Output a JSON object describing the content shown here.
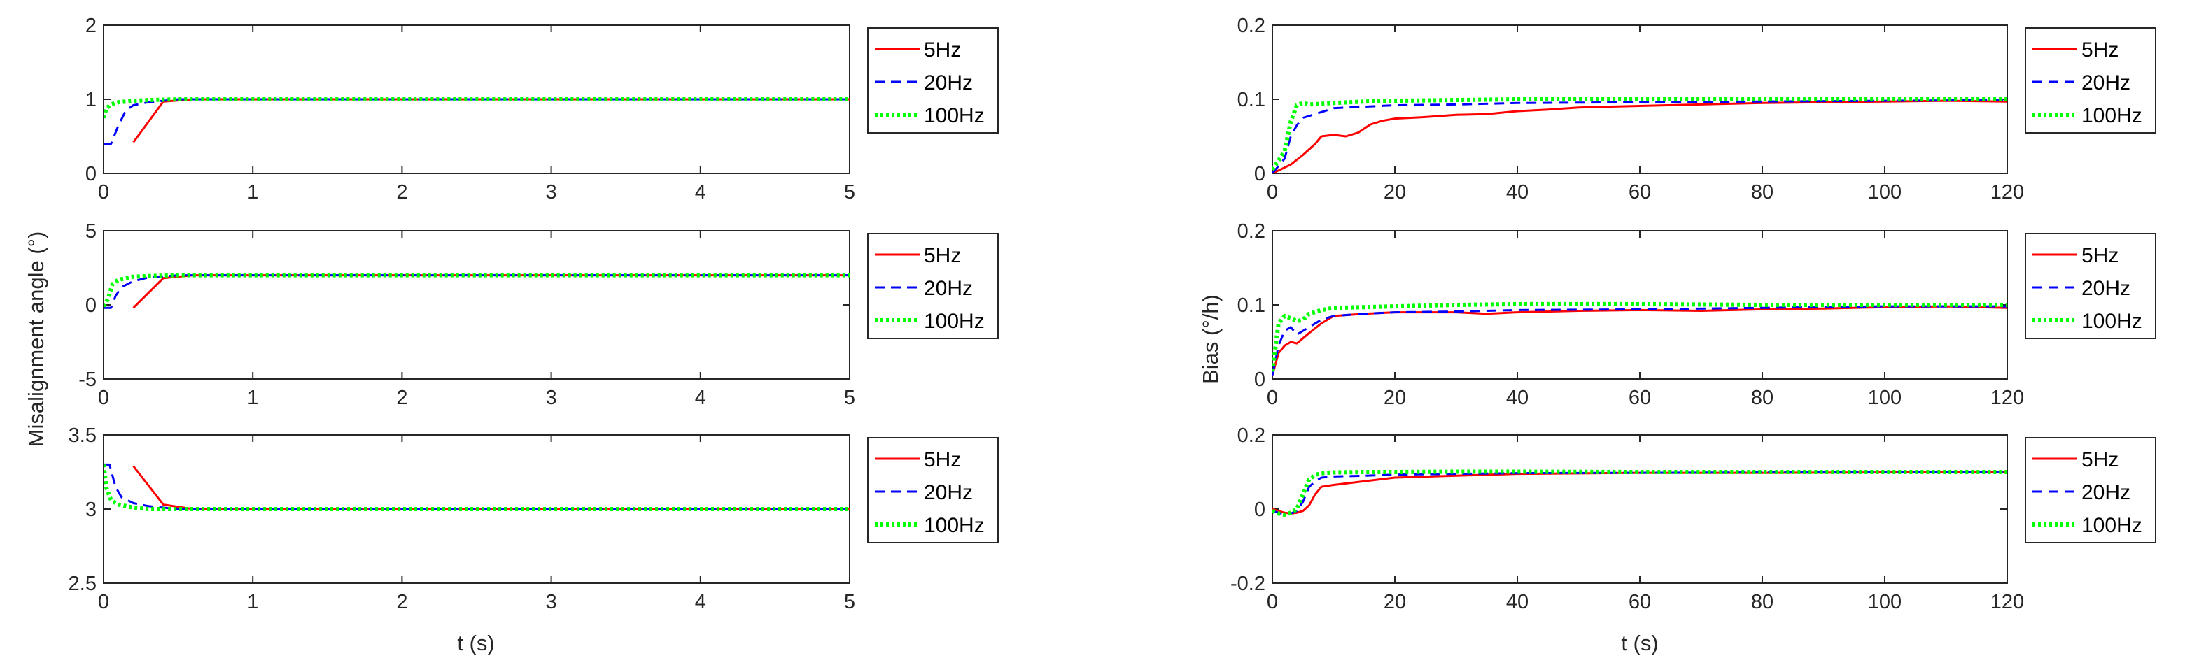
{
  "colors": {
    "5Hz": "#ff0000",
    "20Hz": "#0000ff",
    "100Hz": "#00ff00",
    "axis": "#262626"
  },
  "left_column": {
    "ylabel": "Misalignment angle (°)",
    "xlabel": "t (s)"
  },
  "right_column": {
    "ylabel": "Bias (°/h)",
    "xlabel": "t (s)"
  },
  "chart_data": [
    {
      "id": "L1",
      "type": "line",
      "xlim": [
        0,
        5
      ],
      "ylim": [
        0,
        2
      ],
      "xticks": [
        "0",
        "1",
        "2",
        "3",
        "4",
        "5"
      ],
      "yticks": [
        "0",
        "1",
        "2"
      ],
      "ytick_values": [
        0,
        1,
        2
      ],
      "xlabel": "",
      "ylabel": "",
      "legend": [
        "5Hz",
        "20Hz",
        "100Hz"
      ],
      "legend_position": "outside-right-top",
      "series": [
        {
          "name": "5Hz",
          "style": "solid",
          "x": [
            0.2,
            0.4,
            0.6,
            5
          ],
          "y": [
            0.42,
            0.97,
            1.0,
            1.0
          ]
        },
        {
          "name": "20Hz",
          "style": "dashed",
          "x": [
            0,
            0.05,
            0.1,
            0.15,
            0.2,
            0.3,
            0.4,
            0.5,
            5
          ],
          "y": [
            0.4,
            0.4,
            0.65,
            0.85,
            0.92,
            0.96,
            0.98,
            1.0,
            1.0
          ]
        },
        {
          "name": "100Hz",
          "style": "dotted",
          "x": [
            0,
            0.02,
            0.05,
            0.1,
            0.2,
            0.3,
            0.5,
            5
          ],
          "y": [
            0.75,
            0.88,
            0.93,
            0.96,
            0.98,
            0.99,
            1.0,
            1.0
          ]
        }
      ]
    },
    {
      "id": "L2",
      "type": "line",
      "xlim": [
        0,
        5
      ],
      "ylim": [
        -5,
        5
      ],
      "xticks": [
        "0",
        "1",
        "2",
        "3",
        "4",
        "5"
      ],
      "yticks": [
        "-5",
        "0",
        "5"
      ],
      "ytick_values": [
        -5,
        0,
        5
      ],
      "xlabel": "",
      "ylabel": "",
      "legend": [
        "5Hz",
        "20Hz",
        "100Hz"
      ],
      "legend_position": "outside-right-top",
      "series": [
        {
          "name": "5Hz",
          "style": "solid",
          "x": [
            0.2,
            0.4,
            0.6,
            5
          ],
          "y": [
            -0.2,
            1.8,
            2.0,
            2.0
          ]
        },
        {
          "name": "20Hz",
          "style": "dashed",
          "x": [
            0,
            0.05,
            0.08,
            0.12,
            0.2,
            0.3,
            0.5,
            5
          ],
          "y": [
            -0.2,
            -0.2,
            0.6,
            1.2,
            1.6,
            1.85,
            2.0,
            2.0
          ]
        },
        {
          "name": "100Hz",
          "style": "dotted",
          "x": [
            0,
            0.03,
            0.06,
            0.1,
            0.2,
            0.3,
            0.5,
            5
          ],
          "y": [
            -0.1,
            0.4,
            1.4,
            1.7,
            1.9,
            1.95,
            2.0,
            2.0
          ]
        }
      ]
    },
    {
      "id": "L3",
      "type": "line",
      "xlim": [
        0,
        5
      ],
      "ylim": [
        2.5,
        3.5
      ],
      "xticks": [
        "0",
        "1",
        "2",
        "3",
        "4",
        "5"
      ],
      "yticks": [
        "2.5",
        "3",
        "3.5"
      ],
      "ytick_values": [
        2.5,
        3,
        3.5
      ],
      "xlabel": "t (s)",
      "ylabel": "",
      "legend": [
        "5Hz",
        "20Hz",
        "100Hz"
      ],
      "legend_position": "outside-right-top",
      "series": [
        {
          "name": "5Hz",
          "style": "solid",
          "x": [
            0.2,
            0.4,
            0.6,
            5
          ],
          "y": [
            3.29,
            3.03,
            3.0,
            3.0
          ]
        },
        {
          "name": "20Hz",
          "style": "dashed",
          "x": [
            0,
            0.04,
            0.08,
            0.12,
            0.2,
            0.3,
            0.5,
            5
          ],
          "y": [
            3.3,
            3.3,
            3.15,
            3.08,
            3.04,
            3.02,
            3.0,
            3.0
          ]
        },
        {
          "name": "100Hz",
          "style": "dotted",
          "x": [
            0,
            0.02,
            0.05,
            0.1,
            0.2,
            0.3,
            0.5,
            5
          ],
          "y": [
            3.3,
            3.14,
            3.06,
            3.03,
            3.01,
            3.0,
            3.0,
            3.0
          ]
        }
      ]
    },
    {
      "id": "R1",
      "type": "line",
      "xlim": [
        0,
        120
      ],
      "ylim": [
        0,
        0.2
      ],
      "xticks": [
        "0",
        "20",
        "40",
        "60",
        "80",
        "100",
        "120"
      ],
      "yticks": [
        "0",
        "0.1",
        "0.2"
      ],
      "ytick_values": [
        0,
        0.1,
        0.2
      ],
      "xlabel": "",
      "ylabel": "",
      "legend": [
        "5Hz",
        "20Hz",
        "100Hz"
      ],
      "legend_position": "outside-right-top",
      "series": [
        {
          "name": "5Hz",
          "style": "solid",
          "x": [
            0,
            3,
            5,
            7,
            8,
            10,
            12,
            14,
            16,
            18,
            20,
            25,
            30,
            35,
            40,
            45,
            50,
            60,
            70,
            80,
            90,
            100,
            110,
            120
          ],
          "y": [
            0,
            0.012,
            0.025,
            0.04,
            0.05,
            0.052,
            0.05,
            0.055,
            0.066,
            0.071,
            0.074,
            0.076,
            0.079,
            0.08,
            0.084,
            0.086,
            0.089,
            0.091,
            0.093,
            0.095,
            0.096,
            0.097,
            0.098,
            0.097
          ]
        },
        {
          "name": "20Hz",
          "style": "dashed",
          "x": [
            0,
            2,
            3,
            4,
            5,
            7,
            10,
            15,
            20,
            30,
            40,
            60,
            80,
            100,
            120
          ],
          "y": [
            0,
            0.02,
            0.05,
            0.065,
            0.075,
            0.08,
            0.088,
            0.09,
            0.092,
            0.093,
            0.095,
            0.096,
            0.097,
            0.098,
            0.099
          ]
        },
        {
          "name": "100Hz",
          "style": "dotted",
          "x": [
            0,
            2,
            3,
            4,
            5,
            6,
            8,
            10,
            15,
            20,
            40,
            60,
            80,
            100,
            120
          ],
          "y": [
            0.005,
            0.03,
            0.07,
            0.092,
            0.095,
            0.093,
            0.094,
            0.095,
            0.097,
            0.098,
            0.1,
            0.1,
            0.1,
            0.1,
            0.1
          ]
        }
      ]
    },
    {
      "id": "R2",
      "type": "line",
      "xlim": [
        0,
        120
      ],
      "ylim": [
        0,
        0.2
      ],
      "xticks": [
        "0",
        "20",
        "40",
        "60",
        "80",
        "100",
        "120"
      ],
      "yticks": [
        "0",
        "0.1",
        "0.2"
      ],
      "ytick_values": [
        0,
        0.1,
        0.2
      ],
      "xlabel": "",
      "ylabel": "",
      "legend": [
        "5Hz",
        "20Hz",
        "100Hz"
      ],
      "legend_position": "outside-right-top",
      "series": [
        {
          "name": "5Hz",
          "style": "solid",
          "x": [
            0,
            1,
            2,
            3,
            4,
            5,
            6,
            8,
            10,
            15,
            20,
            30,
            35,
            40,
            50,
            60,
            70,
            80,
            90,
            100,
            110,
            120
          ],
          "y": [
            0.005,
            0.035,
            0.045,
            0.05,
            0.048,
            0.055,
            0.062,
            0.075,
            0.085,
            0.088,
            0.09,
            0.09,
            0.088,
            0.09,
            0.092,
            0.093,
            0.092,
            0.094,
            0.095,
            0.097,
            0.098,
            0.096
          ]
        },
        {
          "name": "20Hz",
          "style": "dashed",
          "x": [
            0,
            1,
            2,
            3,
            4,
            5,
            6,
            8,
            10,
            15,
            20,
            30,
            40,
            60,
            80,
            100,
            120
          ],
          "y": [
            0.005,
            0.045,
            0.065,
            0.07,
            0.06,
            0.065,
            0.07,
            0.08,
            0.085,
            0.088,
            0.09,
            0.091,
            0.093,
            0.094,
            0.096,
            0.098,
            0.098
          ]
        },
        {
          "name": "100Hz",
          "style": "dotted",
          "x": [
            0,
            1,
            2,
            3,
            4,
            5,
            6,
            8,
            10,
            15,
            20,
            30,
            40,
            60,
            80,
            100,
            120
          ],
          "y": [
            0.01,
            0.075,
            0.085,
            0.082,
            0.078,
            0.08,
            0.088,
            0.093,
            0.096,
            0.097,
            0.098,
            0.1,
            0.101,
            0.101,
            0.1,
            0.1,
            0.1
          ]
        }
      ]
    },
    {
      "id": "R3",
      "type": "line",
      "xlim": [
        0,
        120
      ],
      "ylim": [
        -0.2,
        0.2
      ],
      "xticks": [
        "0",
        "20",
        "40",
        "60",
        "80",
        "100",
        "120"
      ],
      "yticks": [
        "-0.2",
        "0",
        "0.2"
      ],
      "ytick_values": [
        -0.2,
        0,
        0.2
      ],
      "xlabel": "t (s)",
      "ylabel": "",
      "legend": [
        "5Hz",
        "20Hz",
        "100Hz"
      ],
      "legend_position": "outside-right-top",
      "series": [
        {
          "name": "5Hz",
          "style": "solid",
          "x": [
            0,
            2,
            3,
            4,
            5,
            6,
            7,
            8,
            10,
            15,
            20,
            30,
            40,
            60,
            80,
            100,
            120
          ],
          "y": [
            0,
            -0.01,
            -0.012,
            -0.01,
            -0.005,
            0.01,
            0.04,
            0.06,
            0.065,
            0.075,
            0.085,
            0.09,
            0.095,
            0.098,
            0.098,
            0.099,
            0.1
          ]
        },
        {
          "name": "20Hz",
          "style": "dashed",
          "x": [
            0,
            1,
            2,
            3,
            4,
            5,
            6,
            7,
            8,
            10,
            15,
            20,
            30,
            40,
            60,
            80,
            100,
            120
          ],
          "y": [
            -0.005,
            -0.01,
            -0.015,
            -0.012,
            -0.005,
            0.02,
            0.06,
            0.075,
            0.085,
            0.088,
            0.09,
            0.093,
            0.095,
            0.097,
            0.098,
            0.099,
            0.1,
            0.1
          ]
        },
        {
          "name": "100Hz",
          "style": "dotted",
          "x": [
            0,
            1,
            2,
            3,
            4,
            5,
            6,
            7,
            8,
            10,
            15,
            20,
            30,
            40,
            60,
            80,
            100,
            120
          ],
          "y": [
            -0.005,
            -0.012,
            -0.015,
            -0.01,
            0.0,
            0.04,
            0.08,
            0.092,
            0.097,
            0.099,
            0.1,
            0.1,
            0.101,
            0.101,
            0.1,
            0.1,
            0.1,
            0.1
          ]
        }
      ]
    }
  ]
}
